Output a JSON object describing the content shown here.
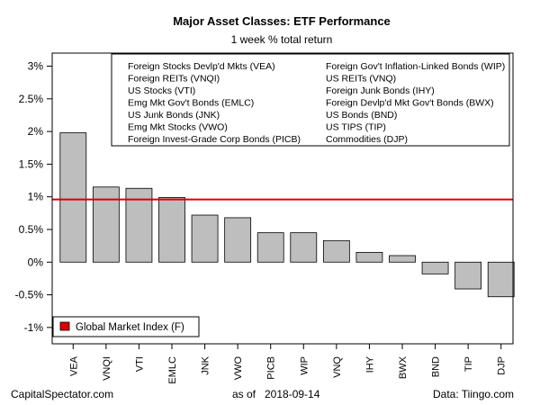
{
  "chart_data": {
    "type": "bar",
    "title": "Major Asset Classes: ETF Performance",
    "subtitle": "1 week % total return",
    "categories": [
      "VEA",
      "VNQI",
      "VTI",
      "EMLC",
      "JNK",
      "VWO",
      "PICB",
      "WIP",
      "VNQ",
      "IHY",
      "BWX",
      "BND",
      "TIP",
      "DJP"
    ],
    "values": [
      1.98,
      1.15,
      1.13,
      0.99,
      0.72,
      0.68,
      0.45,
      0.45,
      0.33,
      0.15,
      0.1,
      -0.18,
      -0.41,
      -0.53
    ],
    "ylim": [
      -1.25,
      3.2
    ],
    "yticks": [
      -1,
      -0.5,
      0,
      0.5,
      1,
      1.5,
      2,
      2.5,
      3
    ],
    "ytick_labels": [
      "-1%",
      "-0.5%",
      "0%",
      "0.5%",
      "1%",
      "1.5%",
      "2%",
      "2.5%",
      "3%"
    ],
    "reference_line": {
      "label": "Global Market Index (F)",
      "value": 0.96,
      "color": "#dd0000"
    },
    "bar_color": "#bebebe",
    "legend_left": [
      "Foreign Stocks Devlp'd Mkts (VEA)",
      "Foreign REITs (VNQI)",
      "US Stocks (VTI)",
      "Emg Mkt Gov't Bonds (EMLC)",
      "US Junk Bonds (JNK)",
      "Emg Mkt Stocks (VWO)",
      "Foreign Invest-Grade Corp Bonds (PICB)"
    ],
    "legend_right": [
      "Foreign Gov't Inflation-Linked Bonds (WIP)",
      "US REITs (VNQ)",
      "Foreign Junk Bonds (IHY)",
      "Foreign Devlp'd Mkt Gov't Bonds (BWX)",
      "US Bonds (BND)",
      "US TIPS (TIP)",
      "Commodities (DJP)"
    ],
    "grid": false
  },
  "footer": {
    "source_left": "CapitalSpectator.com",
    "as_of_label": "as of",
    "as_of_date": "2018-09-14",
    "source_right": "Data: Tiingo.com"
  }
}
